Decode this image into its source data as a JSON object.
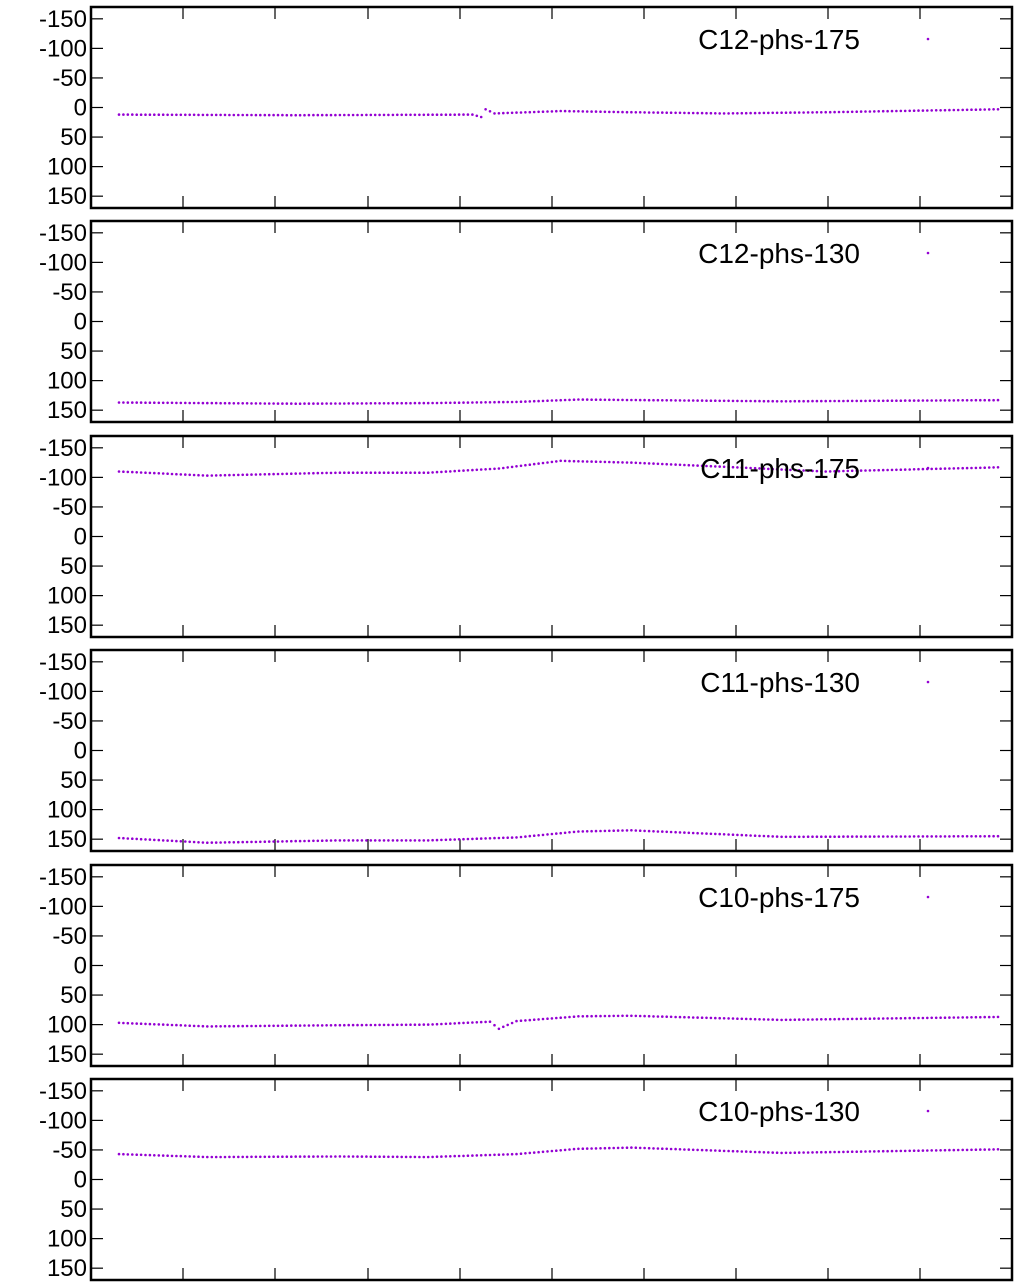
{
  "chart_data": [
    {
      "type": "scatter",
      "series": [
        {
          "name": "C12-phs-175"
        }
      ],
      "ylim": [
        170,
        -170
      ],
      "yticks": [
        "-150",
        "-100",
        "-50",
        "0",
        "50",
        "100",
        "150"
      ],
      "x_count": 200,
      "anchors": [
        [
          0,
          12
        ],
        [
          40,
          13
        ],
        [
          80,
          12
        ],
        [
          82,
          16
        ],
        [
          83,
          3
        ],
        [
          85,
          10
        ],
        [
          100,
          6
        ],
        [
          116,
          8
        ],
        [
          137,
          10
        ],
        [
          160,
          8
        ],
        [
          199,
          3
        ]
      ],
      "color": "#9400d3",
      "legend_position": "top-right",
      "grid": false
    },
    {
      "type": "scatter",
      "series": [
        {
          "name": "C12-phs-130"
        }
      ],
      "ylim": [
        170,
        -170
      ],
      "yticks": [
        "-150",
        "-100",
        "-50",
        "0",
        "50",
        "100",
        "150"
      ],
      "x_count": 200,
      "anchors": [
        [
          0,
          137
        ],
        [
          40,
          139
        ],
        [
          70,
          138
        ],
        [
          90,
          136
        ],
        [
          104,
          132
        ],
        [
          150,
          135
        ],
        [
          199,
          133
        ]
      ],
      "color": "#9400d3",
      "legend_position": "top-right",
      "grid": false
    },
    {
      "type": "scatter",
      "series": [
        {
          "name": "C11-phs-175"
        }
      ],
      "ylim": [
        170,
        -170
      ],
      "yticks": [
        "-150",
        "-100",
        "-50",
        "0",
        "50",
        "100",
        "150"
      ],
      "x_count": 200,
      "anchors": [
        [
          0,
          -110
        ],
        [
          20,
          -103
        ],
        [
          50,
          -108
        ],
        [
          70,
          -108
        ],
        [
          86,
          -115
        ],
        [
          100,
          -128
        ],
        [
          116,
          -125
        ],
        [
          160,
          -110
        ],
        [
          199,
          -117
        ]
      ],
      "color": "#9400d3",
      "legend_position": "top-right",
      "grid": false
    },
    {
      "type": "scatter",
      "series": [
        {
          "name": "C11-phs-130"
        }
      ],
      "ylim": [
        170,
        -170
      ],
      "yticks": [
        "-150",
        "-100",
        "-50",
        "0",
        "50",
        "100",
        "150"
      ],
      "x_count": 200,
      "anchors": [
        [
          0,
          148
        ],
        [
          20,
          156
        ],
        [
          50,
          152
        ],
        [
          70,
          152
        ],
        [
          90,
          147
        ],
        [
          104,
          137
        ],
        [
          116,
          135
        ],
        [
          150,
          146
        ],
        [
          199,
          145
        ]
      ],
      "color": "#9400d3",
      "legend_position": "top-right",
      "grid": false
    },
    {
      "type": "scatter",
      "series": [
        {
          "name": "C10-phs-175"
        }
      ],
      "ylim": [
        170,
        -170
      ],
      "yticks": [
        "-150",
        "-100",
        "-50",
        "0",
        "50",
        "100",
        "150"
      ],
      "x_count": 200,
      "anchors": [
        [
          0,
          97
        ],
        [
          20,
          103
        ],
        [
          50,
          101
        ],
        [
          70,
          100
        ],
        [
          84,
          95
        ],
        [
          86,
          107
        ],
        [
          90,
          94
        ],
        [
          104,
          86
        ],
        [
          116,
          85
        ],
        [
          150,
          92
        ],
        [
          199,
          87
        ]
      ],
      "color": "#9400d3",
      "legend_position": "top-right",
      "grid": false
    },
    {
      "type": "scatter",
      "series": [
        {
          "name": "C10-phs-130"
        }
      ],
      "ylim": [
        170,
        -170
      ],
      "yticks": [
        "-150",
        "-100",
        "-50",
        "0",
        "50",
        "100",
        "150"
      ],
      "x_count": 200,
      "anchors": [
        [
          0,
          -43
        ],
        [
          20,
          -38
        ],
        [
          50,
          -39
        ],
        [
          70,
          -38
        ],
        [
          90,
          -43
        ],
        [
          104,
          -52
        ],
        [
          116,
          -54
        ],
        [
          150,
          -45
        ],
        [
          199,
          -51
        ]
      ],
      "color": "#9400d3",
      "legend_position": "top-right",
      "grid": false
    }
  ]
}
